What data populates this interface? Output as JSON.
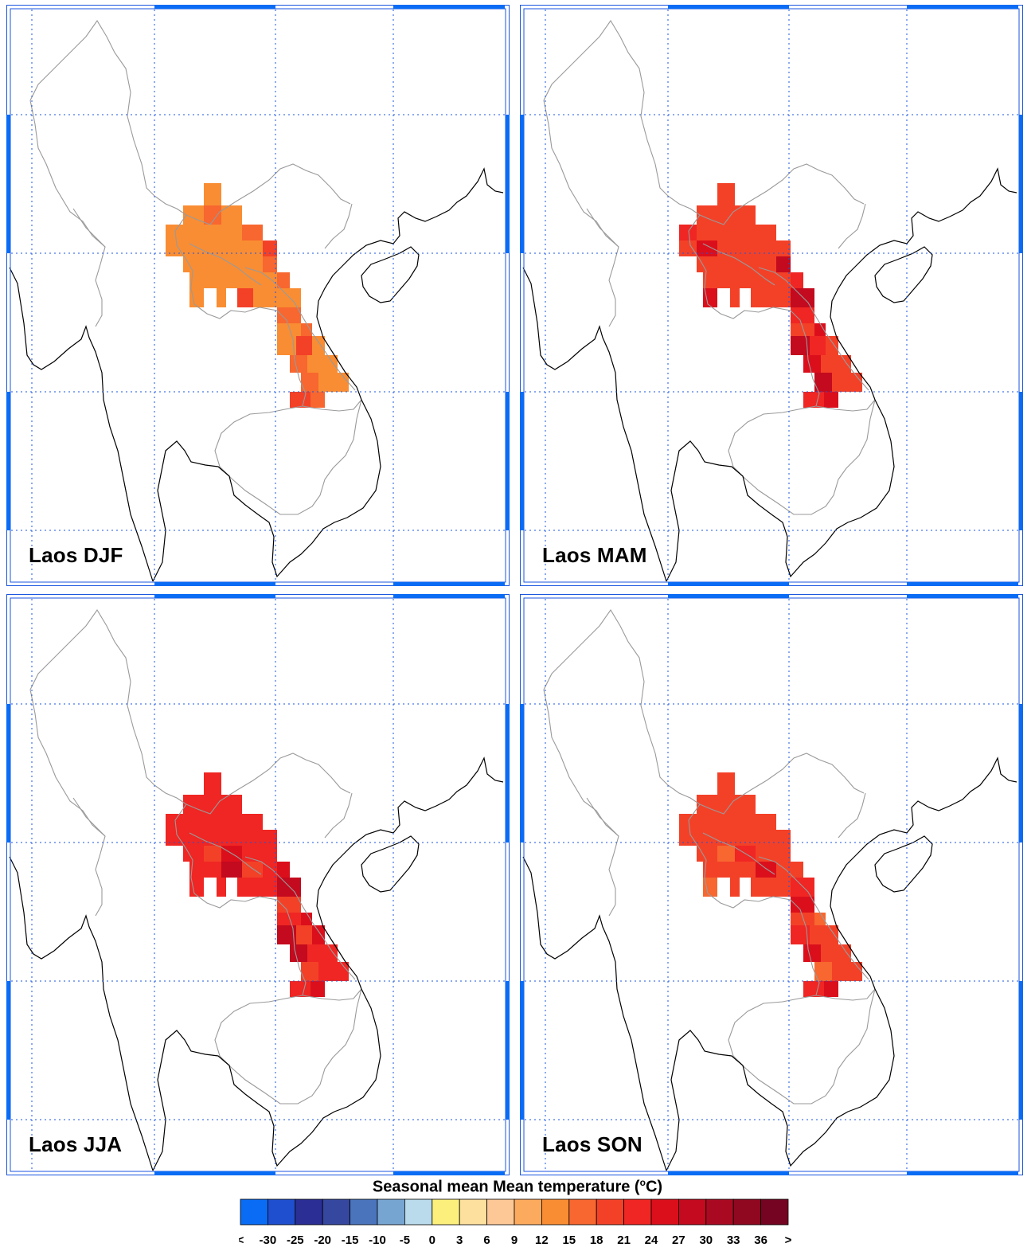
{
  "panels": [
    {
      "label": "Laos DJF"
    },
    {
      "label": "Laos MAM"
    },
    {
      "label": "Laos JJA"
    },
    {
      "label": "Laos SON"
    }
  ],
  "legend": {
    "title": "Seasonal mean Mean temperature (°C)",
    "title_prefix": "Seasonal mean Mean temperature (",
    "title_unit_sup": "o",
    "title_suffix": "C)",
    "tick_labels": [
      "<",
      "-30",
      "-25",
      "-20",
      "-15",
      "-10",
      "-5",
      "0",
      "3",
      "6",
      "9",
      "12",
      "15",
      "18",
      "21",
      "24",
      "27",
      "30",
      "33",
      "36",
      ">"
    ],
    "colors": [
      "#0a6cf4",
      "#1f4fcf",
      "#2b2e94",
      "#35479f",
      "#4a74bc",
      "#77a5d2",
      "#b9dbeb",
      "#fcef7c",
      "#fde09e",
      "#fdc895",
      "#fcaa5d",
      "#f98d33",
      "#f7672f",
      "#f34128",
      "#ef2623",
      "#db0f1c",
      "#c30a1e",
      "#a90a22",
      "#900720",
      "#750322"
    ]
  },
  "map_colors": {
    "land_outline": "#000000",
    "border": "#9a9a9a",
    "grid": "#1a56e0",
    "frame_accent": "#0a6cf4"
  },
  "chart_data": {
    "type": "heatmap",
    "title": "Seasonal mean Mean temperature (°C)",
    "region": "Laos",
    "seasons": [
      "DJF",
      "MAM",
      "JJA",
      "SON"
    ],
    "color_levels": [
      -30,
      -25,
      -20,
      -15,
      -10,
      -5,
      0,
      3,
      6,
      9,
      12,
      15,
      18,
      21,
      24,
      27,
      30,
      33,
      36
    ],
    "approx_mean_temperature": {
      "DJF": 17,
      "MAM": 23,
      "JJA": 25,
      "SON": 22
    }
  }
}
